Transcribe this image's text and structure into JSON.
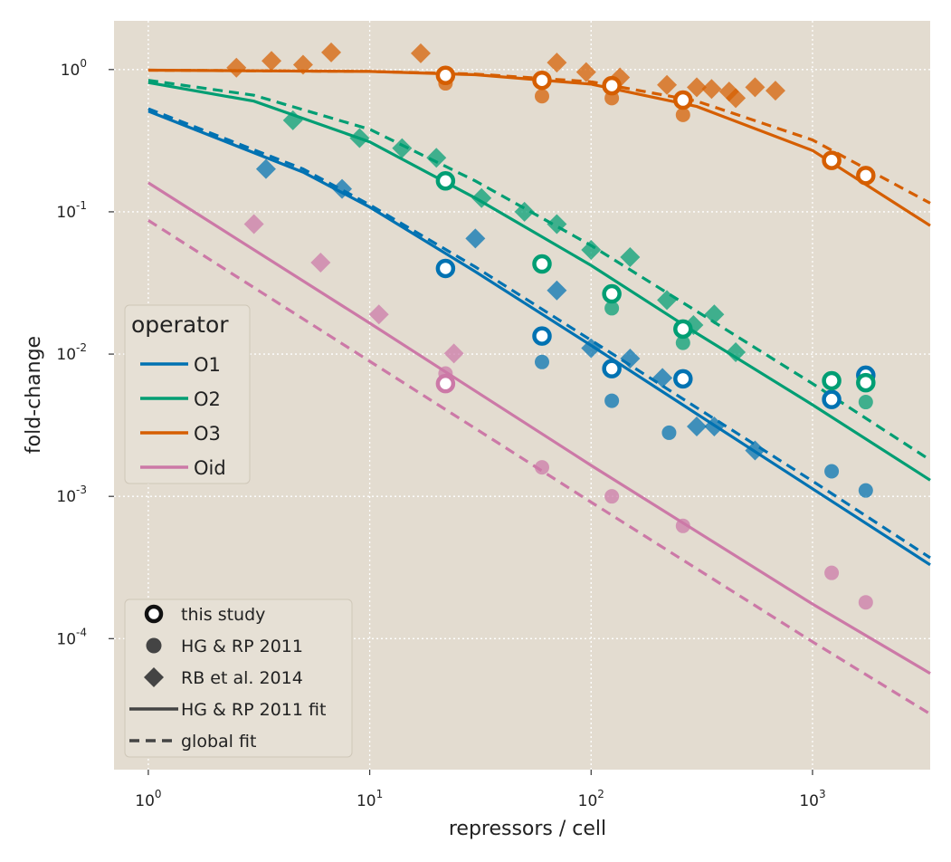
{
  "chart_data": {
    "type": "scatter",
    "xlabel": "repressors / cell",
    "ylabel": "fold-change",
    "xscale": "log",
    "yscale": "log",
    "xlim": [
      0.7,
      3400
    ],
    "ylim": [
      1.2e-05,
      2.2
    ],
    "x_ticks": [
      {
        "base": "10",
        "exp": "0",
        "value": 1
      },
      {
        "base": "10",
        "exp": "1",
        "value": 10
      },
      {
        "base": "10",
        "exp": "2",
        "value": 100
      },
      {
        "base": "10",
        "exp": "3",
        "value": 1000
      }
    ],
    "y_ticks": [
      {
        "base": "10",
        "exp": "0",
        "value": 1
      },
      {
        "base": "10",
        "exp": "-1",
        "value": 0.1
      },
      {
        "base": "10",
        "exp": "-2",
        "value": 0.01
      },
      {
        "base": "10",
        "exp": "-3",
        "value": 0.001
      },
      {
        "base": "10",
        "exp": "-4",
        "value": 0.0001
      }
    ],
    "grid": true,
    "background": "#e3dcd0",
    "operator_legend": {
      "title": "operator",
      "placement": "center-left",
      "entries": [
        {
          "label": "O1",
          "color": "#0072b2"
        },
        {
          "label": "O2",
          "color": "#009e73"
        },
        {
          "label": "O3",
          "color": "#d55e00"
        },
        {
          "label": "Oid",
          "color": "#cc79a7"
        }
      ]
    },
    "style_legend": {
      "placement": "lower-left",
      "entries": [
        {
          "label": "this study",
          "marker": "ring"
        },
        {
          "label": "HG & RP 2011",
          "marker": "dot"
        },
        {
          "label": "RB et al. 2014",
          "marker": "diamond"
        },
        {
          "label": "HG & RP 2011 fit",
          "marker": "solid-line"
        },
        {
          "label": "global fit",
          "marker": "dashed-line"
        }
      ]
    },
    "series": [
      {
        "name": "O1",
        "color": "#0072b2",
        "this_study": [
          [
            22,
            0.04
          ],
          [
            60,
            0.0134
          ],
          [
            124,
            0.0079
          ],
          [
            260,
            0.0067
          ],
          [
            1220,
            0.0048
          ],
          [
            1740,
            0.0071
          ]
        ],
        "hg_rp_2011": [
          [
            60,
            0.0088
          ],
          [
            124,
            0.0047
          ],
          [
            225,
            0.0028
          ],
          [
            1220,
            0.0015
          ],
          [
            1740,
            0.0011
          ]
        ],
        "rb_2014": [
          [
            3.4,
            0.2
          ],
          [
            7.5,
            0.145
          ],
          [
            30,
            0.065
          ],
          [
            70,
            0.028
          ],
          [
            100,
            0.011
          ],
          [
            150,
            0.0093
          ],
          [
            210,
            0.0068
          ],
          [
            300,
            0.0031
          ],
          [
            360,
            0.0031
          ],
          [
            550,
            0.0021
          ]
        ],
        "fit_hg_rp": {
          "points": [
            [
              1,
              0.51
            ],
            [
              5,
              0.19
            ],
            [
              10,
              0.108
            ],
            [
              30,
              0.038
            ],
            [
              100,
              0.0115
            ],
            [
              300,
              0.0038
            ],
            [
              1000,
              0.00113
            ],
            [
              3400,
              0.00033
            ]
          ]
        },
        "fit_global": {
          "points": [
            [
              1,
              0.53
            ],
            [
              5,
              0.2
            ],
            [
              10,
              0.112
            ],
            [
              30,
              0.041
            ],
            [
              100,
              0.0125
            ],
            [
              300,
              0.0042
            ],
            [
              1000,
              0.00128
            ],
            [
              3400,
              0.00037
            ]
          ]
        }
      },
      {
        "name": "O2",
        "color": "#009e73",
        "this_study": [
          [
            22,
            0.165
          ],
          [
            60,
            0.043
          ],
          [
            124,
            0.0265
          ],
          [
            260,
            0.015
          ],
          [
            1220,
            0.0065
          ],
          [
            1740,
            0.0063
          ]
        ],
        "hg_rp_2011": [
          [
            124,
            0.021
          ],
          [
            260,
            0.012
          ],
          [
            1740,
            0.0046
          ]
        ],
        "rb_2014": [
          [
            4.5,
            0.44
          ],
          [
            9,
            0.33
          ],
          [
            14,
            0.28
          ],
          [
            20,
            0.24
          ],
          [
            32,
            0.125
          ],
          [
            50,
            0.1
          ],
          [
            70,
            0.082
          ],
          [
            100,
            0.054
          ],
          [
            150,
            0.048
          ],
          [
            220,
            0.024
          ],
          [
            290,
            0.016
          ],
          [
            360,
            0.019
          ],
          [
            450,
            0.0103
          ]
        ],
        "fit_hg_rp": {
          "points": [
            [
              1,
              0.81
            ],
            [
              3,
              0.6
            ],
            [
              10,
              0.31
            ],
            [
              30,
              0.125
            ],
            [
              100,
              0.042
            ],
            [
              300,
              0.014
            ],
            [
              1000,
              0.0044
            ],
            [
              3400,
              0.0013
            ]
          ]
        },
        "fit_global": {
          "points": [
            [
              1,
              0.84
            ],
            [
              3,
              0.66
            ],
            [
              10,
              0.38
            ],
            [
              30,
              0.165
            ],
            [
              100,
              0.058
            ],
            [
              300,
              0.02
            ],
            [
              1000,
              0.0062
            ],
            [
              3400,
              0.0018
            ]
          ]
        }
      },
      {
        "name": "O3",
        "color": "#d55e00",
        "this_study": [
          [
            22,
            0.91
          ],
          [
            60,
            0.84
          ],
          [
            124,
            0.77
          ],
          [
            260,
            0.61
          ],
          [
            1220,
            0.23
          ],
          [
            1740,
            0.18
          ]
        ],
        "hg_rp_2011": [
          [
            22,
            0.8
          ],
          [
            60,
            0.65
          ],
          [
            124,
            0.63
          ],
          [
            260,
            0.48
          ]
        ],
        "rb_2014": [
          [
            2.5,
            1.03
          ],
          [
            3.6,
            1.15
          ],
          [
            5,
            1.08
          ],
          [
            6.7,
            1.32
          ],
          [
            17,
            1.3
          ],
          [
            70,
            1.12
          ],
          [
            95,
            0.96
          ],
          [
            135,
            0.88
          ],
          [
            220,
            0.78
          ],
          [
            300,
            0.75
          ],
          [
            350,
            0.73
          ],
          [
            420,
            0.7
          ],
          [
            450,
            0.63
          ],
          [
            550,
            0.75
          ],
          [
            680,
            0.71
          ]
        ],
        "fit_hg_rp": {
          "points": [
            [
              1,
              0.99
            ],
            [
              10,
              0.97
            ],
            [
              30,
              0.92
            ],
            [
              100,
              0.79
            ],
            [
              300,
              0.55
            ],
            [
              1000,
              0.27
            ],
            [
              3400,
              0.08
            ]
          ]
        },
        "fit_global": {
          "points": [
            [
              1,
              0.99
            ],
            [
              10,
              0.97
            ],
            [
              30,
              0.93
            ],
            [
              100,
              0.82
            ],
            [
              300,
              0.6
            ],
            [
              1000,
              0.32
            ],
            [
              3400,
              0.115
            ]
          ]
        }
      },
      {
        "name": "Oid",
        "color": "#cc79a7",
        "this_study": [
          [
            22,
            0.0062
          ]
        ],
        "hg_rp_2011": [
          [
            22,
            0.0073
          ],
          [
            60,
            0.0016
          ],
          [
            124,
            0.001
          ],
          [
            260,
            0.00062
          ],
          [
            1220,
            0.00029
          ],
          [
            1740,
            0.00018
          ]
        ],
        "rb_2014": [
          [
            3,
            0.082
          ],
          [
            6,
            0.044
          ],
          [
            11,
            0.019
          ],
          [
            24,
            0.0101
          ]
        ],
        "fit_hg_rp": {
          "points": [
            [
              1,
              0.16
            ],
            [
              10,
              0.0165
            ],
            [
              100,
              0.00165
            ],
            [
              1000,
              0.000175
            ],
            [
              3400,
              5.7e-05
            ]
          ]
        },
        "fit_global": {
          "points": [
            [
              1,
              0.087
            ],
            [
              10,
              0.0089
            ],
            [
              100,
              0.00091
            ],
            [
              1000,
              9.5e-05
            ],
            [
              3400,
              2.95e-05
            ]
          ]
        }
      }
    ]
  }
}
